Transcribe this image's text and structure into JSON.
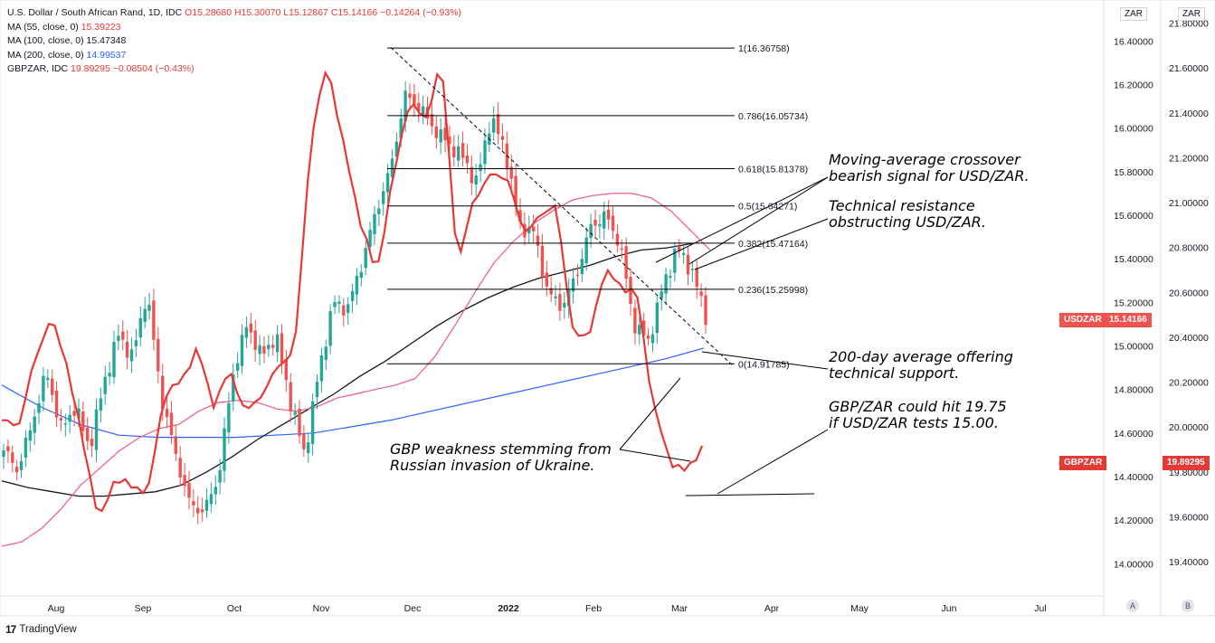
{
  "legend": {
    "title": "U.S. Dollar / South African Rand, 1D, IDC",
    "ohlc": "O15.28680 H15.30070 L15.12867 C15.14166",
    "change": "−0.14264 (−0.93%)",
    "ma55": {
      "label": "MA (55, close, 0)",
      "value": "15.39223"
    },
    "ma100": {
      "label": "MA (100, close, 0)",
      "value": "15.47348"
    },
    "ma200": {
      "label": "MA (200, close, 0)",
      "value": "14.99537"
    },
    "gbpzar": {
      "label": "GBPZAR, IDC",
      "value": "19.89295",
      "change": "−0.08504 (−0.43%)"
    }
  },
  "annotations": {
    "crossover_1": "Moving-average crossover",
    "crossover_2": "bearish signal for USD/ZAR.",
    "resistance_1": "Technical resistance",
    "resistance_2": "obstructing USD/ZAR.",
    "support_1": "200-day average offering",
    "support_2": "technical support.",
    "gbp_1": "GBP weakness stemming from",
    "gbp_2": "Russian invasion of Ukraine.",
    "target_1": "GBP/ZAR could hit 19.75",
    "target_2": "if USD/ZAR tests 15.00."
  },
  "right_axis": {
    "header": "ZAR",
    "price_tag_label": "USDZAR",
    "price_tag_value": "15.14166",
    "button": "A"
  },
  "right_axis_2": {
    "header": "ZAR",
    "price_tag_label": "GBPZAR",
    "price_tag_value": "19.89295",
    "button": "B"
  },
  "brand": {
    "text": "TradingView",
    "logo": "17"
  },
  "colors": {
    "up": "#26a69a",
    "down": "#ef5350",
    "ma55": "#f05a7e",
    "ma100": "#131722",
    "ma200": "#2962ff",
    "gbpzar": "#e53935",
    "fib": "#000000",
    "annotation": "#000000"
  },
  "chart_data": {
    "type": "candlestick",
    "title": "U.S. Dollar / South African Rand, 1D, IDC",
    "x_tick_labels": [
      "Aug",
      "Sep",
      "Oct",
      "Nov",
      "Dec",
      "2022",
      "Feb",
      "Mar",
      "Apr",
      "May",
      "Jun",
      "Jul"
    ],
    "y_axis_left": {
      "ylim": [
        13.86,
        16.58
      ],
      "ticks": [
        "14.00000",
        "14.20000",
        "14.40000",
        "14.60000",
        "14.80000",
        "15.00000",
        "15.20000",
        "15.40000",
        "15.60000",
        "15.80000",
        "16.00000",
        "16.20000",
        "16.40000"
      ]
    },
    "y_axis_right": {
      "ylim": [
        19.255,
        21.895
      ],
      "ticks": [
        "19.40000",
        "19.60000",
        "19.80000",
        "20.00000",
        "20.20000",
        "20.40000",
        "20.60000",
        "20.80000",
        "21.00000",
        "21.20000",
        "21.40000",
        "21.60000",
        "21.80000"
      ]
    },
    "fibonacci": [
      {
        "level": "1",
        "price": 16.36758,
        "label": "1(16.36758)"
      },
      {
        "level": "0.786",
        "price": 16.05734,
        "label": "0.786(16.05734)"
      },
      {
        "level": "0.618",
        "price": 15.81378,
        "label": "0.618(15.81378)"
      },
      {
        "level": "0.5",
        "price": 15.64271,
        "label": "0.5(15.64271)"
      },
      {
        "level": "0.382",
        "price": 15.47164,
        "label": "0.382(15.47164)"
      },
      {
        "level": "0.236",
        "price": 15.25998,
        "label": "0.236(15.25998)"
      },
      {
        "level": "0",
        "price": 14.91785,
        "label": "0(14.91785)"
      }
    ],
    "usdzar_close_weekly": [
      14.52,
      14.43,
      14.65,
      14.88,
      14.62,
      14.72,
      14.53,
      14.83,
      15.05,
      14.95,
      15.25,
      14.77,
      14.5,
      14.27,
      14.24,
      14.4,
      14.87,
      15.1,
      14.95,
      15.05,
      14.75,
      14.5,
      14.88,
      15.2,
      15.17,
      15.38,
      15.62,
      15.81,
      16.15,
      16.1,
      16.0,
      15.93,
      15.87,
      15.75,
      16.05,
      15.9,
      15.55,
      15.52,
      15.24,
      15.18,
      15.33,
      15.55,
      15.6,
      15.47,
      15.1,
      15.02,
      15.27,
      15.45,
      15.35,
      15.14
    ],
    "ma55_weekly": [
      14.08,
      14.1,
      14.16,
      14.25,
      14.36,
      14.44,
      14.52,
      14.58,
      14.62,
      14.64,
      14.7,
      14.74,
      14.75,
      14.74,
      14.71,
      14.7,
      14.72,
      14.76,
      14.78,
      14.8,
      14.82,
      14.85,
      14.95,
      15.09,
      15.24,
      15.38,
      15.48,
      15.56,
      15.62,
      15.67,
      15.69,
      15.7,
      15.7,
      15.68,
      15.62,
      15.53,
      15.44
    ],
    "ma100_weekly": [
      14.38,
      14.35,
      14.33,
      14.31,
      14.31,
      14.32,
      14.33,
      14.36,
      14.42,
      14.49,
      14.57,
      14.64,
      14.71,
      14.78,
      14.86,
      14.93,
      15.01,
      15.09,
      15.16,
      15.22,
      15.27,
      15.31,
      15.34,
      15.37,
      15.41,
      15.44,
      15.45,
      15.47
    ],
    "ma200_weekly": [
      14.82,
      14.72,
      14.64,
      14.59,
      14.58,
      14.58,
      14.58,
      14.59,
      14.6,
      14.63,
      14.66,
      14.7,
      14.74,
      14.78,
      14.82,
      14.86,
      14.9,
      14.94,
      14.99
    ],
    "gbpzar_close_weekly": [
      20.03,
      20.0,
      20.29,
      20.49,
      20.28,
      19.92,
      19.58,
      19.78,
      19.73,
      19.72,
      20.15,
      20.2,
      20.35,
      20.1,
      20.25,
      20.06,
      20.15,
      20.27,
      20.35,
      21.3,
      21.62,
      21.25,
      20.92,
      20.68,
      21.1,
      21.45,
      21.37,
      21.63,
      20.72,
      21.02,
      21.12,
      21.12,
      20.87,
      20.93,
      21.0,
      20.45,
      20.38,
      20.7,
      20.63,
      20.59,
      20.1,
      19.85,
      19.8,
      19.91
    ]
  }
}
